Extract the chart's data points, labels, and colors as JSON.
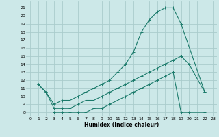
{
  "xlabel": "Humidex (Indice chaleur)",
  "bg_color": "#cce8e8",
  "grid_color": "#aacccc",
  "line_color": "#1a7a6a",
  "xlim": [
    -0.5,
    23.5
  ],
  "ylim": [
    7.5,
    21.8
  ],
  "yticks": [
    8,
    9,
    10,
    11,
    12,
    13,
    14,
    15,
    16,
    17,
    18,
    19,
    20,
    21
  ],
  "xticks": [
    0,
    1,
    2,
    3,
    4,
    5,
    6,
    7,
    8,
    9,
    10,
    11,
    12,
    13,
    14,
    15,
    16,
    17,
    18,
    19,
    20,
    21,
    22,
    23
  ],
  "line1_x": [
    1,
    2,
    3,
    4,
    5,
    6,
    7,
    8,
    9,
    10,
    11,
    12,
    13,
    14,
    15,
    16,
    17,
    18,
    19,
    22
  ],
  "line1_y": [
    11.5,
    10.5,
    9.0,
    9.5,
    9.5,
    10.0,
    10.5,
    11.0,
    11.5,
    12.0,
    13.0,
    14.0,
    15.5,
    18.0,
    19.5,
    20.5,
    21.0,
    21.0,
    19.0,
    10.5
  ],
  "line2_x": [
    1,
    2,
    3,
    4,
    5,
    6,
    7,
    8,
    9,
    10,
    11,
    12,
    13,
    14,
    15,
    16,
    17,
    18,
    19,
    20,
    22
  ],
  "line2_y": [
    11.5,
    10.5,
    8.5,
    8.5,
    8.5,
    9.0,
    9.5,
    9.5,
    10.0,
    10.5,
    11.0,
    11.5,
    12.0,
    12.5,
    13.0,
    13.5,
    14.0,
    14.5,
    15.0,
    14.0,
    10.5
  ],
  "line3_x": [
    3,
    4,
    5,
    6,
    7,
    8,
    9,
    10,
    11,
    12,
    13,
    14,
    15,
    16,
    17,
    18,
    19,
    20,
    22
  ],
  "line3_y": [
    8.0,
    8.0,
    8.0,
    8.0,
    8.0,
    8.5,
    8.5,
    9.0,
    9.5,
    10.0,
    10.5,
    11.0,
    11.5,
    12.0,
    12.5,
    13.0,
    8.0,
    8.0,
    8.0
  ]
}
